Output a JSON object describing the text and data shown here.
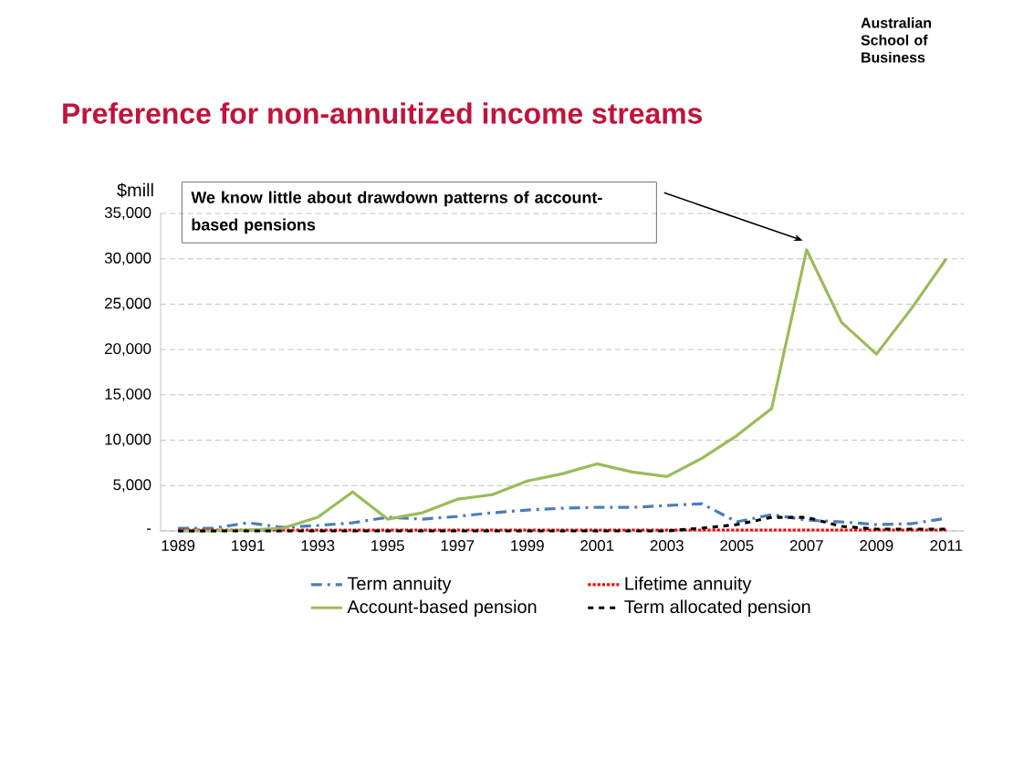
{
  "chart_data": {
    "type": "line",
    "title": "Preference for non-annuitized income streams",
    "ylabel": "$mill",
    "categories": [
      "1989",
      null,
      "1991",
      null,
      "1993",
      null,
      "1995",
      null,
      "1997",
      null,
      "1999",
      null,
      "2001",
      null,
      "2003",
      null,
      "2005",
      null,
      "2007",
      null,
      "2009",
      null,
      "2011"
    ],
    "series": [
      {
        "name": "Term annuity",
        "color": "#4a7ebb",
        "line_style": "dashdot",
        "values": [
          300,
          300,
          900,
          400,
          600,
          900,
          1500,
          1300,
          1600,
          2000,
          2300,
          2500,
          2600,
          2600,
          2800,
          3000,
          1000,
          1800,
          1200,
          1000,
          700,
          800,
          1400
        ]
      },
      {
        "name": "Lifetime annuity",
        "color": "#ff0000",
        "line_style": "dotted",
        "values": [
          100,
          100,
          100,
          100,
          100,
          100,
          100,
          100,
          100,
          100,
          100,
          100,
          100,
          100,
          100,
          100,
          100,
          100,
          100,
          100,
          100,
          100,
          100
        ]
      },
      {
        "name": "Account-based pension",
        "color": "#9bbb59",
        "line_style": "solid",
        "values": [
          0,
          0,
          100,
          300,
          1500,
          4300,
          1300,
          2000,
          3500,
          4000,
          5500,
          6300,
          7400,
          6500,
          6000,
          8000,
          10500,
          13500,
          31000,
          23000,
          19500,
          24500,
          30000
        ]
      },
      {
        "name": "Term allocated pension",
        "color": "#000000",
        "line_style": "dashed",
        "values": [
          0,
          0,
          0,
          0,
          0,
          0,
          0,
          0,
          0,
          0,
          0,
          0,
          0,
          0,
          0,
          300,
          700,
          1500,
          1500,
          500,
          200,
          200,
          200
        ]
      }
    ],
    "ylim": [
      0,
      35000
    ],
    "yticks": [
      {
        "value": 0,
        "label": "-"
      },
      {
        "value": 5000,
        "label": "5,000"
      },
      {
        "value": 10000,
        "label": "10,000"
      },
      {
        "value": 15000,
        "label": "15,000"
      },
      {
        "value": 20000,
        "label": "20,000"
      },
      {
        "value": 25000,
        "label": "25,000"
      },
      {
        "value": 30000,
        "label": "30,000"
      },
      {
        "value": 35000,
        "label": "35,000"
      }
    ],
    "grid": "y",
    "legend": "bottom",
    "marker": "none",
    "annotations": [
      "We know little about drawdown patterns of account-based pensions",
      "Australian School of Business"
    ]
  }
}
